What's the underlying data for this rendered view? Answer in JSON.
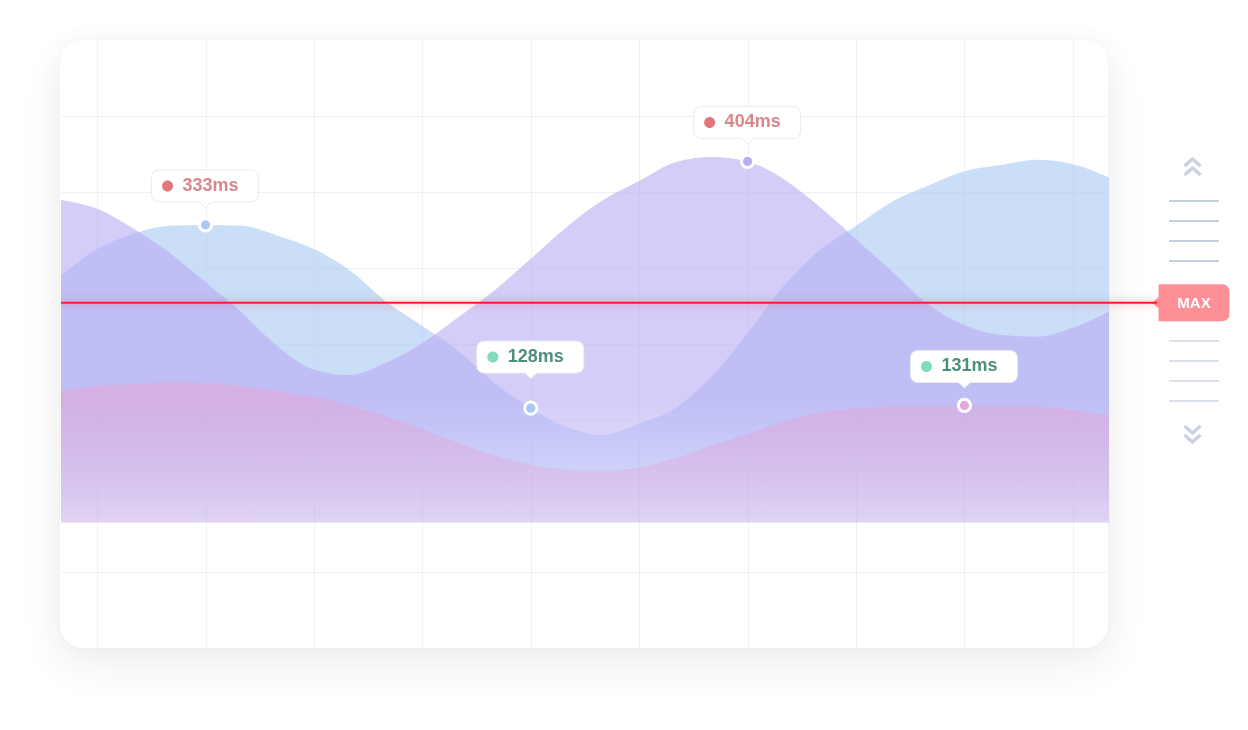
{
  "chart_data": {
    "type": "area",
    "categories": [
      null,
      null,
      null,
      null,
      null,
      null,
      null,
      null,
      null,
      null,
      null,
      null,
      null,
      null,
      null,
      null,
      null,
      null,
      null,
      null,
      null,
      null,
      null,
      null,
      null,
      null,
      null,
      null,
      null,
      null
    ],
    "series": [
      {
        "color": "#a9c9f5",
        "values": [
          276,
          306,
          323,
          332,
          333,
          332,
          321,
          306,
          282,
          247,
          220,
          192,
          156,
          128,
          107,
          98,
          111,
          128,
          163,
          212,
          265,
          305,
          332,
          359,
          377,
          393,
          400,
          406,
          401,
          386
        ],
        "value_labels": [
          null,
          null,
          null,
          null,
          "333ms",
          null,
          null,
          null,
          null,
          null,
          null,
          null,
          null,
          "128ms",
          null,
          null,
          null,
          null,
          null,
          null,
          null,
          null,
          null,
          null,
          null,
          null,
          null,
          null,
          null,
          null
        ]
      },
      {
        "color": "#b9acf4",
        "values": [
          361,
          351,
          329,
          302,
          269,
          235,
          197,
          171,
          165,
          179,
          201,
          230,
          260,
          295,
          331,
          361,
          382,
          403,
          409,
          404,
          384,
          353,
          317,
          281,
          244,
          221,
          210,
          208,
          218,
          236
        ],
        "value_labels": [
          null,
          null,
          null,
          null,
          null,
          null,
          null,
          null,
          null,
          null,
          null,
          null,
          null,
          null,
          null,
          null,
          null,
          null,
          null,
          "404ms",
          null,
          null,
          null,
          null,
          null,
          null,
          null,
          null,
          null,
          null
        ]
      },
      {
        "color": "#e0a8dc",
        "values": [
          147,
          153,
          155,
          157,
          156,
          153,
          147,
          141,
          131,
          119,
          105,
          89,
          75,
          65,
          59,
          58,
          62,
          72,
          86,
          99,
          113,
          123,
          128,
          130,
          131,
          131,
          131,
          130,
          126,
          120
        ],
        "value_labels": [
          null,
          null,
          null,
          null,
          null,
          null,
          null,
          null,
          null,
          null,
          null,
          null,
          null,
          null,
          null,
          null,
          null,
          null,
          null,
          null,
          null,
          null,
          null,
          null,
          null,
          "131ms",
          null,
          null,
          null,
          null
        ]
      }
    ],
    "ref_lines": [
      {
        "axis": "y",
        "value": 246,
        "label": "MAX",
        "color": "#ff1f2d"
      }
    ],
    "grid": true
  }
}
